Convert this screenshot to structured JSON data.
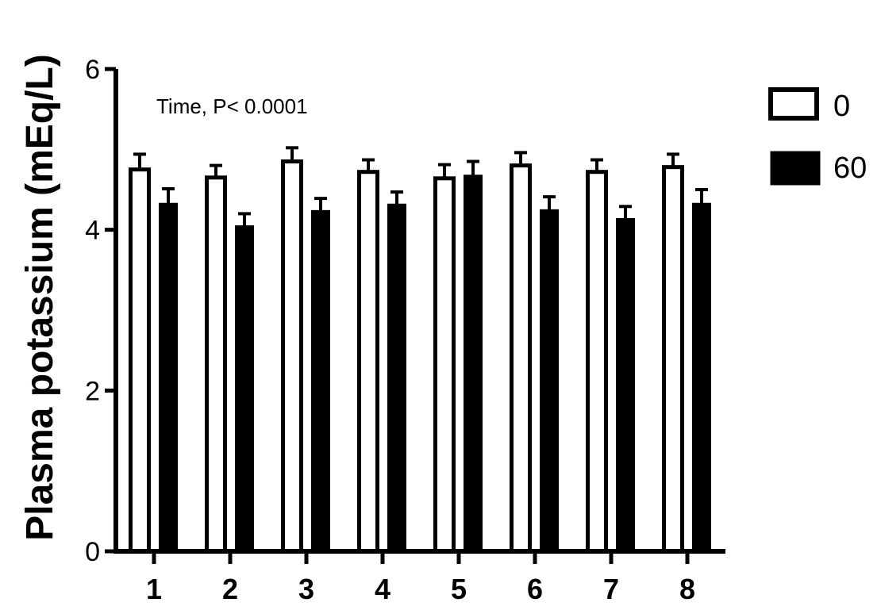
{
  "chart_data": {
    "type": "bar",
    "ylabel": "Plasma potassium (mEq/L)",
    "xlabel": "",
    "ylim": [
      0,
      6
    ],
    "yticks": [
      0,
      2,
      4,
      6
    ],
    "categories": [
      "1",
      "2",
      "3",
      "4",
      "5",
      "6",
      "7",
      "8"
    ],
    "series": [
      {
        "name": "0",
        "fill": "#ffffff",
        "values": [
          4.75,
          4.65,
          4.85,
          4.72,
          4.64,
          4.8,
          4.72,
          4.78
        ],
        "errors": [
          0.19,
          0.15,
          0.17,
          0.15,
          0.17,
          0.16,
          0.15,
          0.16
        ]
      },
      {
        "name": "60",
        "fill": "#000000",
        "values": [
          4.33,
          4.05,
          4.24,
          4.32,
          4.68,
          4.25,
          4.14,
          4.33
        ],
        "errors": [
          0.18,
          0.15,
          0.15,
          0.15,
          0.17,
          0.16,
          0.15,
          0.17
        ]
      }
    ],
    "annotation": "Time, P< 0.0001",
    "legend_position": "top-right"
  }
}
